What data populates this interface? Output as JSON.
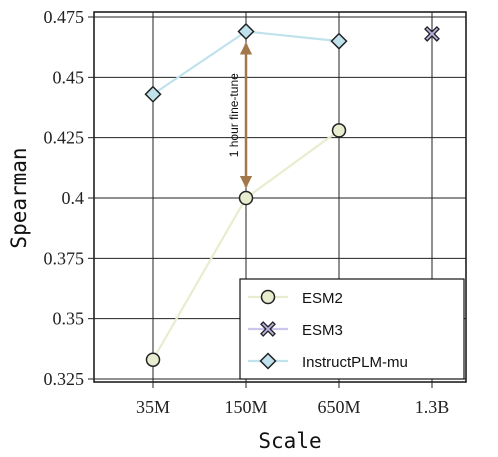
{
  "chart_data": {
    "type": "line",
    "xlabel": "Scale",
    "ylabel": "Spearman",
    "categories": [
      "35M",
      "150M",
      "650M",
      "1.3B"
    ],
    "ylim": [
      0.325,
      0.475
    ],
    "yticks": [
      0.325,
      0.35,
      0.375,
      0.4,
      0.425,
      0.45,
      0.475
    ],
    "ytick_labels": [
      "0.325",
      "0.35",
      "0.375",
      "0.4",
      "0.425",
      "0.45",
      "0.475"
    ],
    "grid": true,
    "legend_position": "bottom-right",
    "series": [
      {
        "name": "ESM2",
        "values": [
          0.333,
          0.4,
          0.428,
          null
        ],
        "marker": "circle",
        "color": "#e8edcf",
        "marker_fill": "#e8edcf"
      },
      {
        "name": "ESM3",
        "values": [
          null,
          null,
          null,
          0.468
        ],
        "marker": "x",
        "color": "#cbc6ea",
        "marker_fill": "#b9b4e2"
      },
      {
        "name": "InstructPLM-mu",
        "values": [
          0.443,
          0.469,
          0.465,
          null
        ],
        "marker": "diamond",
        "color": "#bfe2ec",
        "marker_fill": "#bfe2ec"
      }
    ],
    "annotations": [
      {
        "text": "1 hour fine-tune",
        "from": {
          "x": "150M",
          "y": 0.4
        },
        "to": {
          "x": "150M",
          "y": 0.469
        },
        "color": "#a2784a"
      }
    ]
  }
}
